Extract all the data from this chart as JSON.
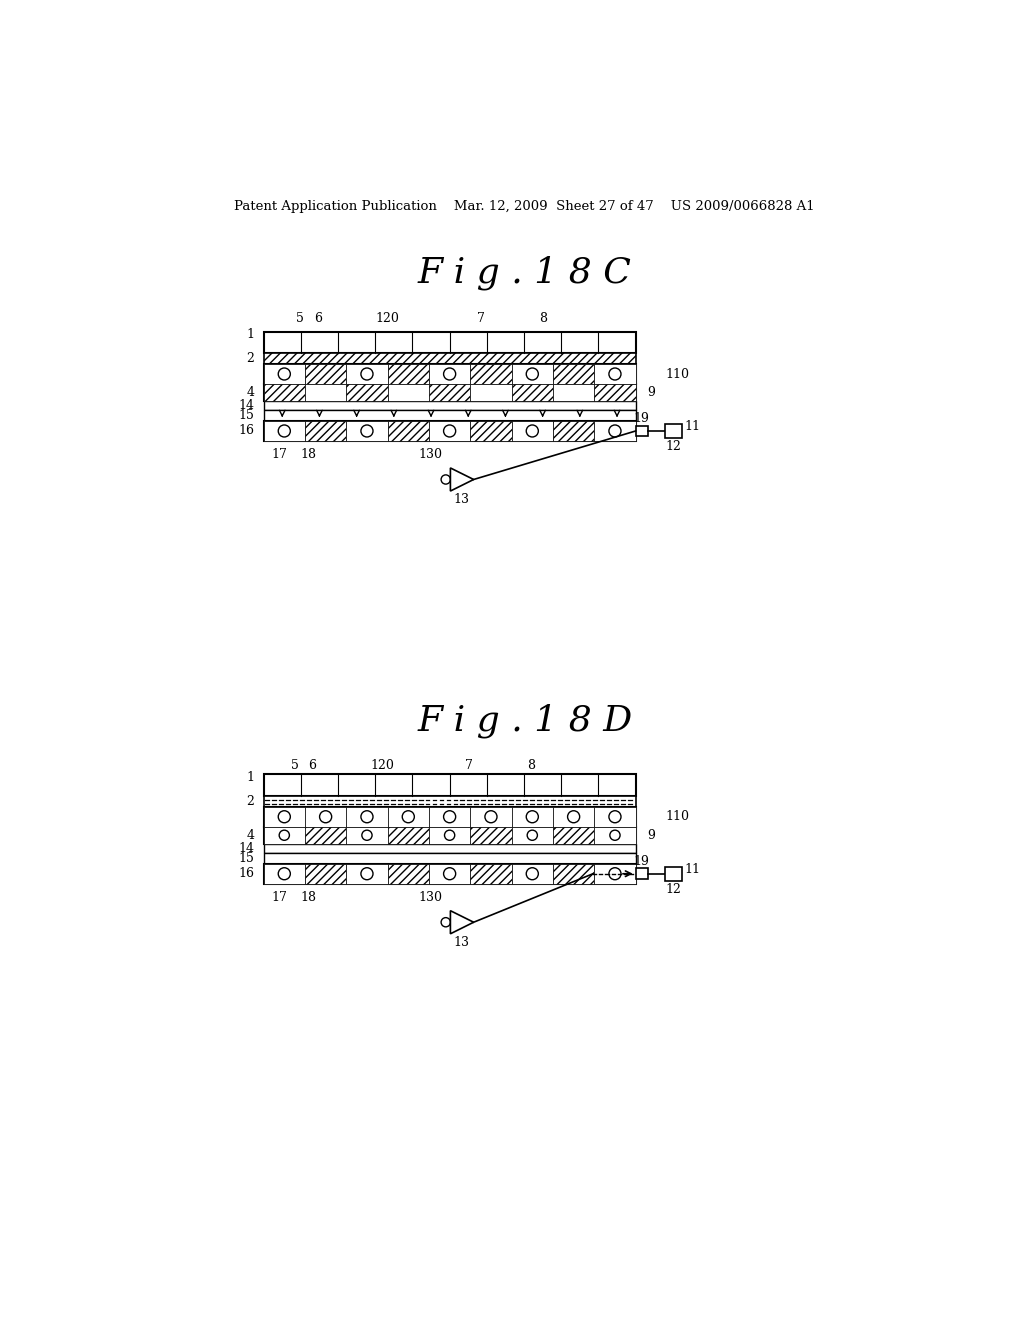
{
  "bg_color": "#ffffff",
  "header_text": "Patent Application Publication    Mar. 12, 2009  Sheet 27 of 47    US 2009/0066828 A1",
  "fig1_title": "F i g . 1 8 C",
  "fig2_title": "F i g . 1 8 D"
}
